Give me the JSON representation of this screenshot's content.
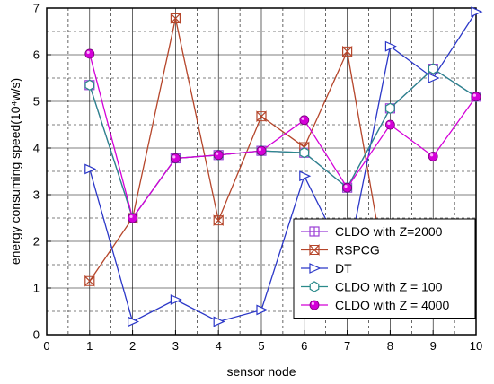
{
  "chart_data": {
    "type": "line",
    "xlabel": "sensor node",
    "ylabel": "energy consuming speed(10⁴w/s)",
    "xlim": [
      0,
      10
    ],
    "ylim": [
      0,
      7
    ],
    "xticks": [
      0,
      1,
      2,
      3,
      4,
      5,
      6,
      7,
      8,
      9,
      10
    ],
    "yticks": [
      0,
      1,
      2,
      3,
      4,
      5,
      6,
      7
    ],
    "grid": true,
    "legend_position": "bottom-right",
    "series": [
      {
        "name": "CLDO with Z=2000",
        "color": "#9b3fd6",
        "marker": "square-plus",
        "x": [
          1,
          2,
          3,
          4,
          5,
          6,
          7,
          8,
          9,
          10
        ],
        "y": [
          5.35,
          2.5,
          3.78,
          3.85,
          3.94,
          3.9,
          3.15,
          4.85,
          5.7,
          5.1
        ]
      },
      {
        "name": "RSPCG",
        "color": "#b5452a",
        "marker": "x-bowtie",
        "x": [
          1,
          2,
          3,
          4,
          5,
          6,
          7,
          8
        ],
        "y": [
          1.15,
          2.5,
          6.78,
          2.45,
          4.68,
          4.02,
          6.07,
          0.75
        ]
      },
      {
        "name": "DT",
        "color": "#2b37c8",
        "marker": "triangle-right",
        "x": [
          1,
          2,
          3,
          4,
          5,
          6,
          7,
          8,
          9,
          10
        ],
        "y": [
          3.55,
          0.28,
          0.75,
          0.28,
          0.53,
          3.4,
          1.55,
          6.18,
          5.5,
          6.92
        ]
      },
      {
        "name": "CLDO with Z = 100",
        "color": "#2a8a8a",
        "marker": "hexagon",
        "x": [
          1,
          2,
          3,
          4,
          5,
          6,
          7,
          8,
          9,
          10
        ],
        "y": [
          5.35,
          2.5,
          3.78,
          3.85,
          3.94,
          3.9,
          3.15,
          4.85,
          5.7,
          5.1
        ]
      },
      {
        "name": "CLDO with Z = 4000",
        "color": "#d400d8",
        "marker": "circle",
        "x": [
          1,
          2,
          3,
          4,
          5,
          6,
          7,
          8,
          9,
          10
        ],
        "y": [
          6.02,
          2.5,
          3.78,
          3.85,
          3.94,
          4.6,
          3.15,
          4.5,
          3.82,
          5.1
        ]
      }
    ]
  }
}
